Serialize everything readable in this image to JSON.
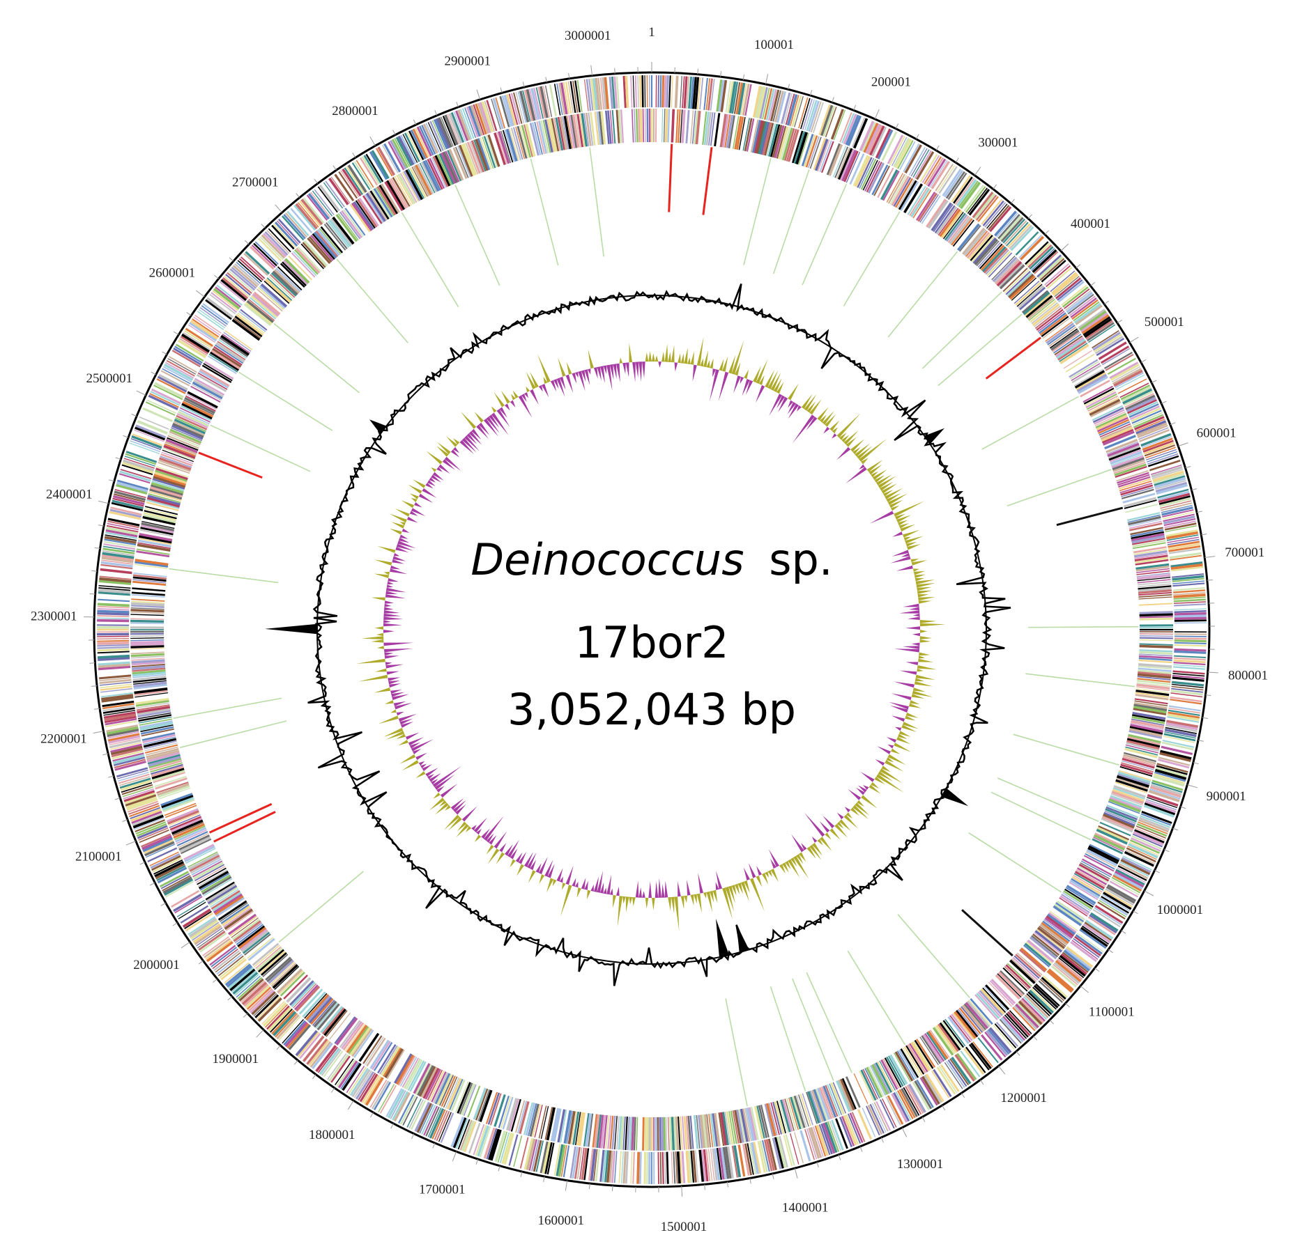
{
  "genome": {
    "organism_italic": "Deinococcus",
    "organism_suffix": "sp.",
    "strain": "17bor2",
    "size_label": "3,052,043 bp",
    "length_bp": 3052043
  },
  "position_labels": [
    "1",
    "100001",
    "200001",
    "300001",
    "400001",
    "500001",
    "600001",
    "700001",
    "800001",
    "900001",
    "1000001",
    "1100001",
    "1200001",
    "1300001",
    "1400001",
    "1500001",
    "1600001",
    "1700001",
    "1800001",
    "1900001",
    "2000001",
    "2100001",
    "2200001",
    "2300001",
    "2400001",
    "2500001",
    "2600001",
    "2700001",
    "2800001",
    "2900001",
    "3000001"
  ],
  "rna_features": {
    "rrna_positions": [
      20000,
      60000,
      450000,
      2470000,
      2080000,
      2070000
    ],
    "trna_positions": [
      120000,
      160000,
      200000,
      260000,
      330000,
      390000,
      420000,
      520000,
      600000,
      760000,
      820000,
      900000,
      960000,
      980000,
      1040000,
      1180000,
      1260000,
      1320000,
      1340000,
      1370000,
      1430000,
      1950000,
      2170000,
      2200000,
      2350000,
      2500000,
      2560000,
      2620000,
      2710000,
      2790000,
      2850000,
      2930000,
      2990000
    ],
    "other_positions": [
      640000,
      1120000
    ]
  },
  "colors": {
    "axis": "#000000",
    "rrna": "#e8231d",
    "trna": "#b9dca6",
    "other_rna": "#111111",
    "gc_content": "#000000",
    "gc_skew_positive": "#aeaa2a",
    "gc_skew_negative": "#a63ca3",
    "cog_palette": [
      "#000000",
      "#000000",
      "#6c6bb0",
      "#9fa0cf",
      "#c96f6f",
      "#e7a7a7",
      "#5c86c2",
      "#a9c4e8",
      "#8bc163",
      "#cfe5b5",
      "#b5559f",
      "#d9a4cf",
      "#e07a3a",
      "#f2d58a",
      "#3a8d8d",
      "#9ad6d9",
      "#8b5a3c",
      "#cfb29b",
      "#6e6e6e",
      "#c3c3c3",
      "#b53f5d",
      "#e6e39b",
      "#ffffff",
      "#ffffff"
    ]
  }
}
